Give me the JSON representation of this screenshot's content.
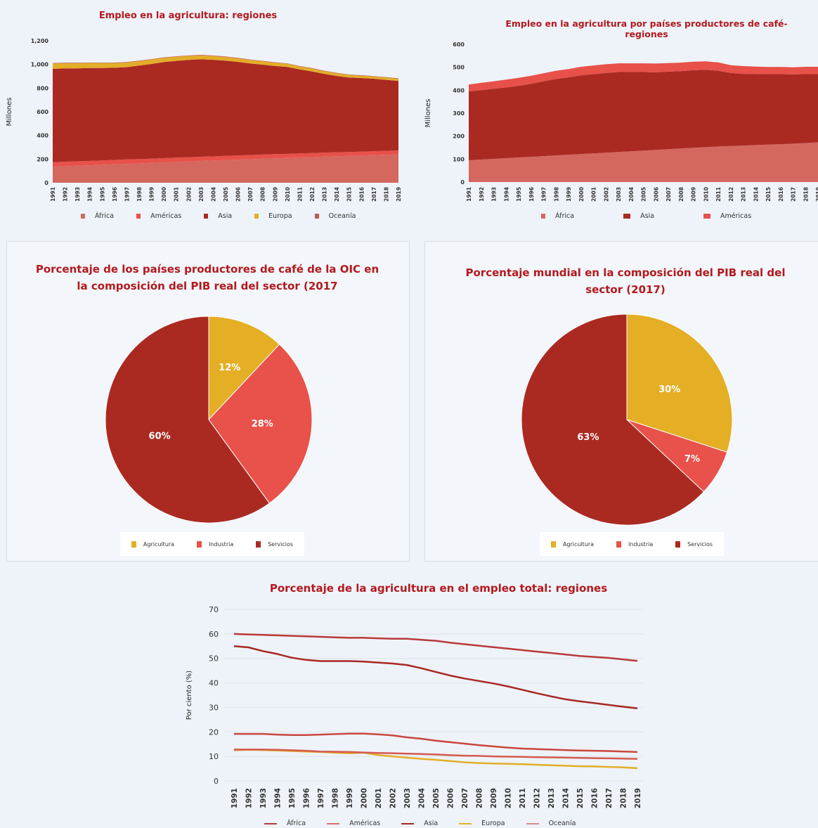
{
  "colors": {
    "africa": "#d4685f",
    "americas": "#e8504a",
    "asia": "#aa2a22",
    "europa": "#e3ae28",
    "oceania": "#c05a52",
    "agricultura": "#e4ae25",
    "industria": "#e8524a",
    "servicios": "#aa2a22"
  },
  "chart_data": [
    {
      "type": "area",
      "stacked": true,
      "title": "Empleo en la agricultura: regiones",
      "ylabel": "Millones",
      "ylim": [
        0,
        1200
      ],
      "yticks": [
        "0",
        "200",
        "400",
        "600",
        "800",
        "1,000",
        "1,200"
      ],
      "ytick_values": [
        0,
        200,
        400,
        600,
        800,
        1000,
        1200
      ],
      "x": [
        "1991",
        "1992",
        "1993",
        "1994",
        "1995",
        "1996",
        "1997",
        "1998",
        "1999",
        "2000",
        "2001",
        "2002",
        "2003",
        "2004",
        "2005",
        "2006",
        "2007",
        "2008",
        "2009",
        "2010",
        "2011",
        "2012",
        "2013",
        "2014",
        "2015",
        "2016",
        "2017",
        "2018",
        "2019"
      ],
      "legend": [
        "África",
        "Américas",
        "Asia",
        "Europa",
        "Oceanía"
      ],
      "series": [
        {
          "name": "África",
          "color": "#d4685f",
          "values": [
            135,
            140,
            144,
            148,
            152,
            156,
            160,
            164,
            168,
            172,
            176,
            180,
            184,
            188,
            192,
            196,
            199,
            203,
            207,
            210,
            214,
            217,
            221,
            224,
            227,
            230,
            234,
            237,
            240
          ]
        },
        {
          "name": "Américas",
          "color": "#e8504a",
          "values": [
            38,
            38,
            37,
            37,
            37,
            37,
            37,
            37,
            36,
            36,
            36,
            36,
            36,
            35,
            35,
            35,
            35,
            35,
            35,
            34,
            34,
            34,
            34,
            34,
            33,
            33,
            33,
            33,
            33
          ]
        },
        {
          "name": "Asia",
          "color": "#aa2a22",
          "values": [
            790,
            788,
            786,
            785,
            781,
            779,
            780,
            789,
            800,
            812,
            818,
            822,
            824,
            816,
            805,
            790,
            775,
            760,
            745,
            735,
            710,
            690,
            665,
            645,
            630,
            622,
            612,
            600,
            588
          ]
        },
        {
          "name": "Europa",
          "color": "#e3ae28",
          "values": [
            45,
            44,
            43,
            42,
            41,
            40,
            39,
            38,
            37,
            36,
            35,
            34,
            33,
            32,
            31,
            30,
            29,
            28,
            27,
            26,
            25,
            24,
            23,
            22,
            21,
            20,
            19,
            19,
            18
          ]
        },
        {
          "name": "Oceanía",
          "color": "#c05a52",
          "values": [
            4,
            4,
            4,
            4,
            4,
            4,
            4,
            4,
            4,
            4,
            4,
            4,
            4,
            4,
            4,
            4,
            4,
            4,
            4,
            4,
            4,
            4,
            4,
            4,
            4,
            4,
            4,
            4,
            4
          ]
        }
      ]
    },
    {
      "type": "area",
      "stacked": true,
      "title": "Empleo en la agricultura por países productores de café-regiones",
      "ylabel": "Millones",
      "ylim": [
        0,
        600
      ],
      "yticks": [
        "0",
        "100",
        "200",
        "300",
        "400",
        "500",
        "600"
      ],
      "ytick_values": [
        0,
        100,
        200,
        300,
        400,
        500,
        600
      ],
      "x": [
        "1991",
        "1992",
        "1993",
        "1994",
        "1995",
        "1996",
        "1997",
        "1998",
        "1999",
        "2000",
        "2001",
        "2002",
        "2003",
        "2004",
        "2005",
        "2006",
        "2007",
        "2008",
        "2009",
        "2010",
        "2011",
        "2012",
        "2013",
        "2014",
        "2015",
        "2016",
        "2017",
        "2018",
        "2019"
      ],
      "legend": [
        "África",
        "Asia",
        "Américas"
      ],
      "series": [
        {
          "name": "África",
          "color": "#d4685f",
          "values": [
            95,
            98,
            101,
            104,
            107,
            110,
            113,
            116,
            119,
            122,
            125,
            128,
            131,
            134,
            137,
            140,
            143,
            146,
            149,
            152,
            155,
            157,
            159,
            161,
            163,
            165,
            167,
            170,
            173
          ]
        },
        {
          "name": "Asia",
          "color": "#aa2a22",
          "values": [
            300,
            302,
            305,
            308,
            312,
            318,
            326,
            333,
            337,
            343,
            345,
            347,
            348,
            345,
            342,
            338,
            338,
            337,
            338,
            337,
            330,
            318,
            312,
            310,
            307,
            305,
            302,
            300,
            297
          ]
        },
        {
          "name": "Américas",
          "color": "#e8504a",
          "values": [
            30,
            32,
            33,
            34,
            35,
            35,
            35,
            36,
            36,
            37,
            38,
            38,
            38,
            38,
            38,
            38,
            37,
            37,
            37,
            37,
            36,
            34,
            34,
            32,
            31,
            31,
            31,
            32,
            32
          ]
        }
      ]
    },
    {
      "type": "pie",
      "title": "Porcentaje de los países productores de café de la OIC en la composición del PIB real del sector (2017",
      "labels": [
        "Agricultura",
        "Industria",
        "Servicios"
      ],
      "values": [
        12,
        28,
        60
      ],
      "value_labels": [
        "12%",
        "28%",
        "60%"
      ],
      "colors": [
        "#e4ae25",
        "#e8524a",
        "#aa2a22"
      ]
    },
    {
      "type": "pie",
      "title": "Porcentaje mundial en la composición del PIB real del sector (2017)",
      "labels": [
        "Agricultura",
        "Industria",
        "Servicios"
      ],
      "values": [
        30,
        7,
        63
      ],
      "value_labels": [
        "30%",
        "7%",
        "63%"
      ],
      "colors": [
        "#e4ae25",
        "#e8524a",
        "#aa2a22"
      ]
    },
    {
      "type": "line",
      "title": "Porcentaje de la agricultura en el empleo total: regiones",
      "ylabel": "Por ciento (%)",
      "ylim": [
        0,
        70
      ],
      "yticks": [
        "0",
        "10",
        "20",
        "30",
        "40",
        "50",
        "60",
        "70"
      ],
      "ytick_values": [
        0,
        10,
        20,
        30,
        40,
        50,
        60,
        70
      ],
      "x": [
        "1991",
        "1992",
        "1993",
        "1994",
        "1995",
        "1996",
        "1997",
        "1998",
        "1999",
        "2000",
        "2001",
        "2002",
        "2003",
        "2004",
        "2005",
        "2006",
        "2007",
        "2008",
        "2009",
        "2010",
        "2011",
        "2012",
        "2013",
        "2014",
        "2015",
        "2016",
        "2017",
        "2018",
        "2019"
      ],
      "legend": [
        "África",
        "Américas",
        "Asia",
        "Europa",
        "Oceanía"
      ],
      "series": [
        {
          "name": "África",
          "color": "#b83a3a",
          "values": [
            60,
            59.8,
            59.6,
            59.4,
            59.2,
            59,
            58.8,
            58.6,
            58.4,
            58.4,
            58.2,
            58,
            58,
            57.6,
            57.2,
            56.4,
            55.8,
            55.2,
            54.6,
            54,
            53.4,
            52.8,
            52.2,
            51.6,
            51,
            50.6,
            50.2,
            49.6,
            49
          ]
        },
        {
          "name": "Américas",
          "color": "#c9463f",
          "values": [
            19.2,
            19.2,
            19.2,
            18.9,
            18.7,
            18.7,
            18.9,
            19.1,
            19.3,
            19.3,
            19,
            18.6,
            17.8,
            17.2,
            16.4,
            15.8,
            15.2,
            14.6,
            14.1,
            13.6,
            13.2,
            13,
            12.8,
            12.6,
            12.4,
            12.3,
            12.2,
            12,
            11.8
          ]
        },
        {
          "name": "Asia",
          "color": "#a82823",
          "values": [
            55,
            54.5,
            53,
            51.8,
            50.3,
            49.4,
            48.9,
            48.9,
            48.9,
            48.7,
            48.3,
            47.9,
            47.3,
            46,
            44.5,
            43,
            41.8,
            40.8,
            39.8,
            38.6,
            37.2,
            35.8,
            34.5,
            33.3,
            32.5,
            31.8,
            31,
            30.3,
            29.6
          ]
        },
        {
          "name": "Europa",
          "color": "#e3ae28",
          "values": [
            12.5,
            12.7,
            12.6,
            12.4,
            12.2,
            12,
            11.8,
            11.5,
            11.3,
            11.5,
            10.6,
            10,
            9.5,
            9,
            8.6,
            8.1,
            7.6,
            7.3,
            7.1,
            7,
            6.8,
            6.6,
            6.4,
            6.2,
            6,
            5.9,
            5.7,
            5.5,
            5.2
          ]
        },
        {
          "name": "Oceanía",
          "color": "#d45a50",
          "values": [
            12.8,
            12.8,
            12.8,
            12.7,
            12.5,
            12.3,
            12,
            11.9,
            11.8,
            11.6,
            11.4,
            11.3,
            11.1,
            11,
            10.8,
            10.5,
            10.3,
            10.2,
            10,
            9.9,
            9.8,
            9.7,
            9.6,
            9.5,
            9.4,
            9.3,
            9.2,
            9.1,
            9
          ]
        }
      ]
    }
  ]
}
